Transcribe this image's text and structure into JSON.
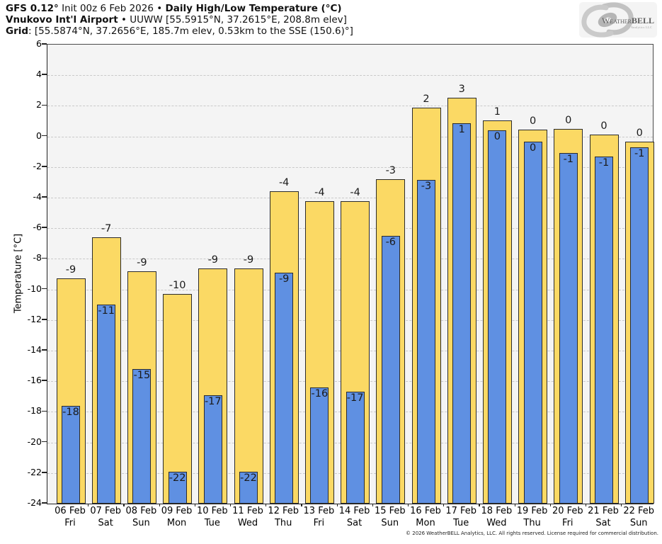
{
  "header": {
    "title_model": "GFS 0.12°",
    "title_mid": " Init 00z 6 Feb 2026 • ",
    "title_main": "Daily High/Low Temperature (°C)",
    "station_bold": "Vnukovo Int'l Airport",
    "station_rest": " • UUWW [55.5915°N, 37.2615°E, 208.8m elev]",
    "grid_bold": "Grid",
    "grid_rest": ": [55.5874°N, 37.2656°E, 185.7m elev, 0.53km to the SSE (150.6)°]"
  },
  "logo": {
    "text_part1": "Weather",
    "text_part2": "BELL",
    "subtext": "Analytics LLC"
  },
  "footer": "© 2026 WeatherBELL Analytics, LLC. All rights reserved. License required for commercial distribution.",
  "chart_data": {
    "type": "bar",
    "title": "GFS 0.12° Init 00z 6 Feb 2026 • Daily High/Low Temperature (°C)",
    "subtitle": "Vnukovo Int'l Airport • UUWW [55.5915°N, 37.2615°E, 208.8m elev]",
    "xlabel": "",
    "ylabel": "Temperature [°C]",
    "ylim": [
      -24,
      6
    ],
    "yticks": [
      6,
      4,
      2,
      0,
      -2,
      -4,
      -6,
      -8,
      -10,
      -12,
      -14,
      -16,
      -18,
      -20,
      -22,
      -24
    ],
    "grid": true,
    "plot_background": "#f4f4f4",
    "legend_position": "none",
    "categories": [
      "06 Feb",
      "07 Feb",
      "08 Feb",
      "09 Feb",
      "10 Feb",
      "11 Feb",
      "12 Feb",
      "13 Feb",
      "14 Feb",
      "15 Feb",
      "16 Feb",
      "17 Feb",
      "18 Feb",
      "19 Feb",
      "20 Feb",
      "21 Feb",
      "22 Feb"
    ],
    "weekdays": [
      "Fri",
      "Sat",
      "Sun",
      "Mon",
      "Tue",
      "Wed",
      "Thu",
      "Fri",
      "Sat",
      "Sun",
      "Mon",
      "Tue",
      "Wed",
      "Thu",
      "Fri",
      "Sat",
      "Sun"
    ],
    "series": [
      {
        "name": "Daily High",
        "color": "#fbd964",
        "values": [
          -9.3,
          -6.6,
          -8.8,
          -10.3,
          -8.65,
          -8.65,
          -3.6,
          -4.25,
          -4.25,
          -2.8,
          1.9,
          2.55,
          1.05,
          0.45,
          0.5,
          0.1,
          -0.35
        ],
        "labels": [
          "-9",
          "-7",
          "-9",
          "-10",
          "-9",
          "-9",
          "-4",
          "-4",
          "-4",
          "-3",
          "2",
          "3",
          "1",
          "0",
          "0",
          "0",
          "0"
        ]
      },
      {
        "name": "Daily Low",
        "color": "#5f90e2",
        "values": [
          -17.6,
          -11.0,
          -15.2,
          -21.9,
          -16.9,
          -21.9,
          -8.9,
          -16.4,
          -16.7,
          -6.5,
          -2.85,
          0.85,
          0.4,
          -0.35,
          -1.1,
          -1.3,
          -0.7
        ],
        "labels": [
          "-18",
          "-11",
          "-15",
          "-22",
          "-17",
          "-22",
          "-9",
          "-16",
          "-17",
          "-6",
          "-3",
          "1",
          "0",
          "0",
          "-1",
          "-1",
          "-1"
        ]
      }
    ]
  }
}
